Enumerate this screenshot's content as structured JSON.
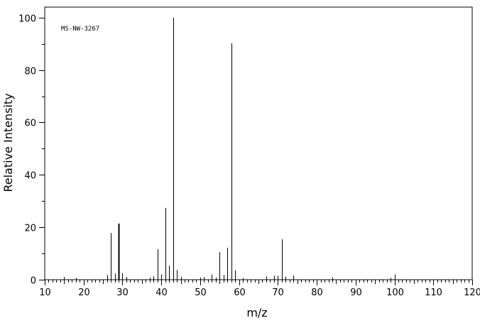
{
  "chart_data": {
    "type": "bar",
    "title": "",
    "annotation": "MS-NW-3267",
    "xlabel": "m/z",
    "ylabel": "Relative Intensity",
    "xlim": [
      10,
      120
    ],
    "ylim": [
      0,
      104
    ],
    "x_ticks": [
      10,
      20,
      30,
      40,
      50,
      60,
      70,
      80,
      90,
      100,
      110,
      120
    ],
    "y_ticks": [
      0,
      20,
      40,
      60,
      80,
      100
    ],
    "grid": false,
    "legend": "none",
    "color": "#000000",
    "peaks": [
      {
        "mz": 15,
        "intensity": 1.0
      },
      {
        "mz": 18,
        "intensity": 0.7
      },
      {
        "mz": 26,
        "intensity": 1.8
      },
      {
        "mz": 27,
        "intensity": 17.8
      },
      {
        "mz": 28,
        "intensity": 2.3
      },
      {
        "mz": 29,
        "intensity": 21.4
      },
      {
        "mz": 30,
        "intensity": 2.5
      },
      {
        "mz": 31,
        "intensity": 1.0
      },
      {
        "mz": 37,
        "intensity": 0.7
      },
      {
        "mz": 38,
        "intensity": 1.3
      },
      {
        "mz": 39,
        "intensity": 11.6
      },
      {
        "mz": 40,
        "intensity": 1.9
      },
      {
        "mz": 41,
        "intensity": 27.4
      },
      {
        "mz": 42,
        "intensity": 5.3
      },
      {
        "mz": 43,
        "intensity": 100.0
      },
      {
        "mz": 44,
        "intensity": 3.7
      },
      {
        "mz": 45,
        "intensity": 1.0
      },
      {
        "mz": 50,
        "intensity": 0.8
      },
      {
        "mz": 51,
        "intensity": 1.0
      },
      {
        "mz": 53,
        "intensity": 2.0
      },
      {
        "mz": 54,
        "intensity": 0.8
      },
      {
        "mz": 55,
        "intensity": 10.5
      },
      {
        "mz": 56,
        "intensity": 1.8
      },
      {
        "mz": 57,
        "intensity": 12.2
      },
      {
        "mz": 58,
        "intensity": 90.2
      },
      {
        "mz": 59,
        "intensity": 3.6
      },
      {
        "mz": 61,
        "intensity": 0.6
      },
      {
        "mz": 67,
        "intensity": 1.3
      },
      {
        "mz": 69,
        "intensity": 1.5
      },
      {
        "mz": 70,
        "intensity": 1.5
      },
      {
        "mz": 71,
        "intensity": 15.4
      },
      {
        "mz": 72,
        "intensity": 1.2
      },
      {
        "mz": 74,
        "intensity": 1.6
      },
      {
        "mz": 84,
        "intensity": 0.9
      },
      {
        "mz": 99,
        "intensity": 0.7
      },
      {
        "mz": 100,
        "intensity": 2.0
      }
    ]
  }
}
